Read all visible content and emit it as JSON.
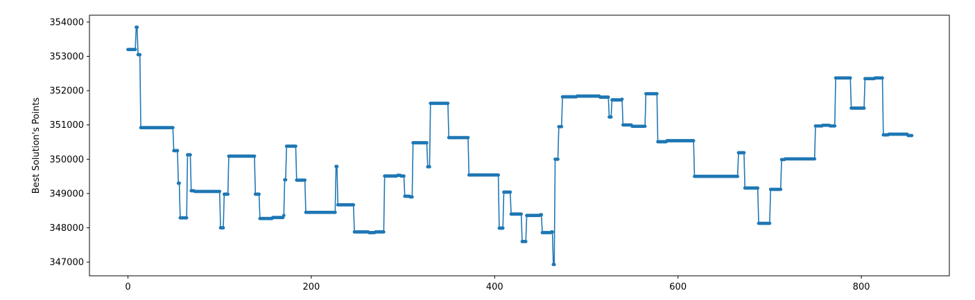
{
  "chart_data": {
    "type": "line",
    "title": "",
    "xlabel": "",
    "ylabel": "Best Solution's Points",
    "xlim": [
      -42,
      896
    ],
    "ylim": [
      346600,
      354200
    ],
    "xticks": [
      0,
      200,
      400,
      600,
      800
    ],
    "yticks": [
      347000,
      348000,
      349000,
      350000,
      351000,
      352000,
      353000,
      354000
    ],
    "grid": false,
    "legend": "none",
    "marker": "circle",
    "line_color": "#1f77b4",
    "series": [
      {
        "steps": [
          [
            0,
            353200
          ],
          [
            9,
            353850
          ],
          [
            11,
            353050
          ],
          [
            14,
            350920
          ],
          [
            50,
            350250
          ],
          [
            55,
            349300
          ],
          [
            57,
            348290
          ],
          [
            63,
            348290
          ],
          [
            65,
            350130
          ],
          [
            69,
            349080
          ],
          [
            73,
            349060
          ],
          [
            101,
            348000
          ],
          [
            105,
            348980
          ],
          [
            110,
            350090
          ],
          [
            139,
            348980
          ],
          [
            144,
            348270
          ],
          [
            158,
            348300
          ],
          [
            170,
            348360
          ],
          [
            171,
            349400
          ],
          [
            173,
            350380
          ],
          [
            184,
            349390
          ],
          [
            194,
            348450
          ],
          [
            227,
            349790
          ],
          [
            229,
            348670
          ],
          [
            247,
            347880
          ],
          [
            263,
            347860
          ],
          [
            270,
            347880
          ],
          [
            280,
            349510
          ],
          [
            294,
            349530
          ],
          [
            298,
            349510
          ],
          [
            302,
            348920
          ],
          [
            308,
            348900
          ],
          [
            311,
            350480
          ],
          [
            327,
            349780
          ],
          [
            330,
            351630
          ],
          [
            350,
            350630
          ],
          [
            372,
            349540
          ],
          [
            405,
            347990
          ],
          [
            410,
            349040
          ],
          [
            418,
            348400
          ],
          [
            430,
            347600
          ],
          [
            435,
            348360
          ],
          [
            450,
            348380
          ],
          [
            452,
            347860
          ],
          [
            462,
            347880
          ],
          [
            464,
            346930
          ],
          [
            466,
            350000
          ],
          [
            470,
            350950
          ],
          [
            474,
            351820
          ],
          [
            490,
            351840
          ],
          [
            515,
            351810
          ],
          [
            525,
            351230
          ],
          [
            528,
            351730
          ],
          [
            539,
            351750
          ],
          [
            540,
            351000
          ],
          [
            550,
            350960
          ],
          [
            565,
            351910
          ],
          [
            578,
            350510
          ],
          [
            588,
            350540
          ],
          [
            618,
            349500
          ],
          [
            666,
            350190
          ],
          [
            673,
            349160
          ],
          [
            688,
            348130
          ],
          [
            701,
            349120
          ],
          [
            713,
            349990
          ],
          [
            717,
            350010
          ],
          [
            750,
            350970
          ],
          [
            758,
            350990
          ],
          [
            766,
            350970
          ],
          [
            772,
            352370
          ],
          [
            789,
            351490
          ],
          [
            804,
            352350
          ],
          [
            815,
            352370
          ],
          [
            824,
            350710
          ],
          [
            830,
            350730
          ],
          [
            851,
            350690
          ]
        ],
        "x_end": 855
      }
    ]
  }
}
